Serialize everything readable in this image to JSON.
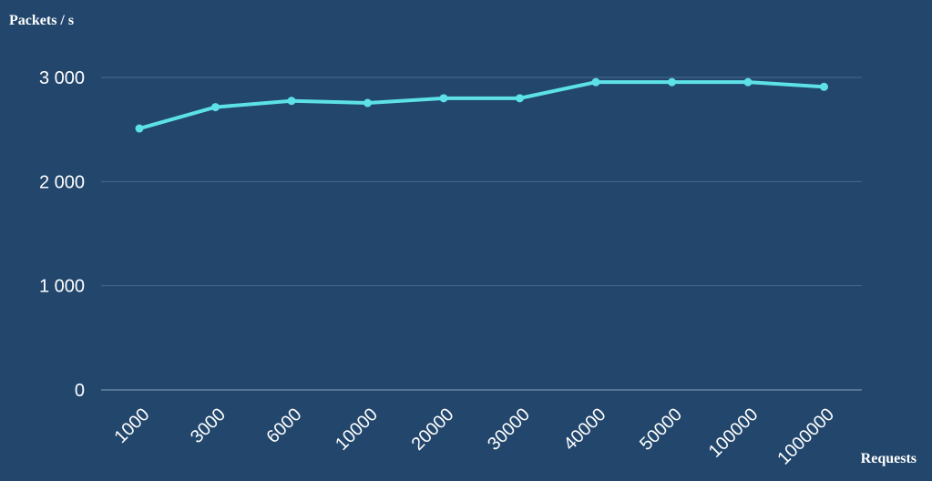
{
  "chart_data": {
    "type": "line",
    "title": "",
    "ylabel": "Packets / s",
    "xlabel": "Requests",
    "categories": [
      "1000",
      "3000",
      "6000",
      "10000",
      "20000",
      "30000",
      "40000",
      "50000",
      "100000",
      "1000000"
    ],
    "series": [
      {
        "values": [
          2510,
          2715,
          2775,
          2755,
          2800,
          2800,
          2955,
          2955,
          2955,
          2910
        ]
      }
    ],
    "ylim": [
      0,
      3000
    ],
    "yticks": [
      0,
      1000,
      2000,
      3000
    ],
    "ytick_labels": [
      "0",
      "1 000",
      "2 000",
      "3 000"
    ],
    "grid": true,
    "colors": {
      "background": "#22466c",
      "line": "#5de1e8",
      "grid": "#4a6a8c",
      "text": "#ffffff"
    }
  }
}
